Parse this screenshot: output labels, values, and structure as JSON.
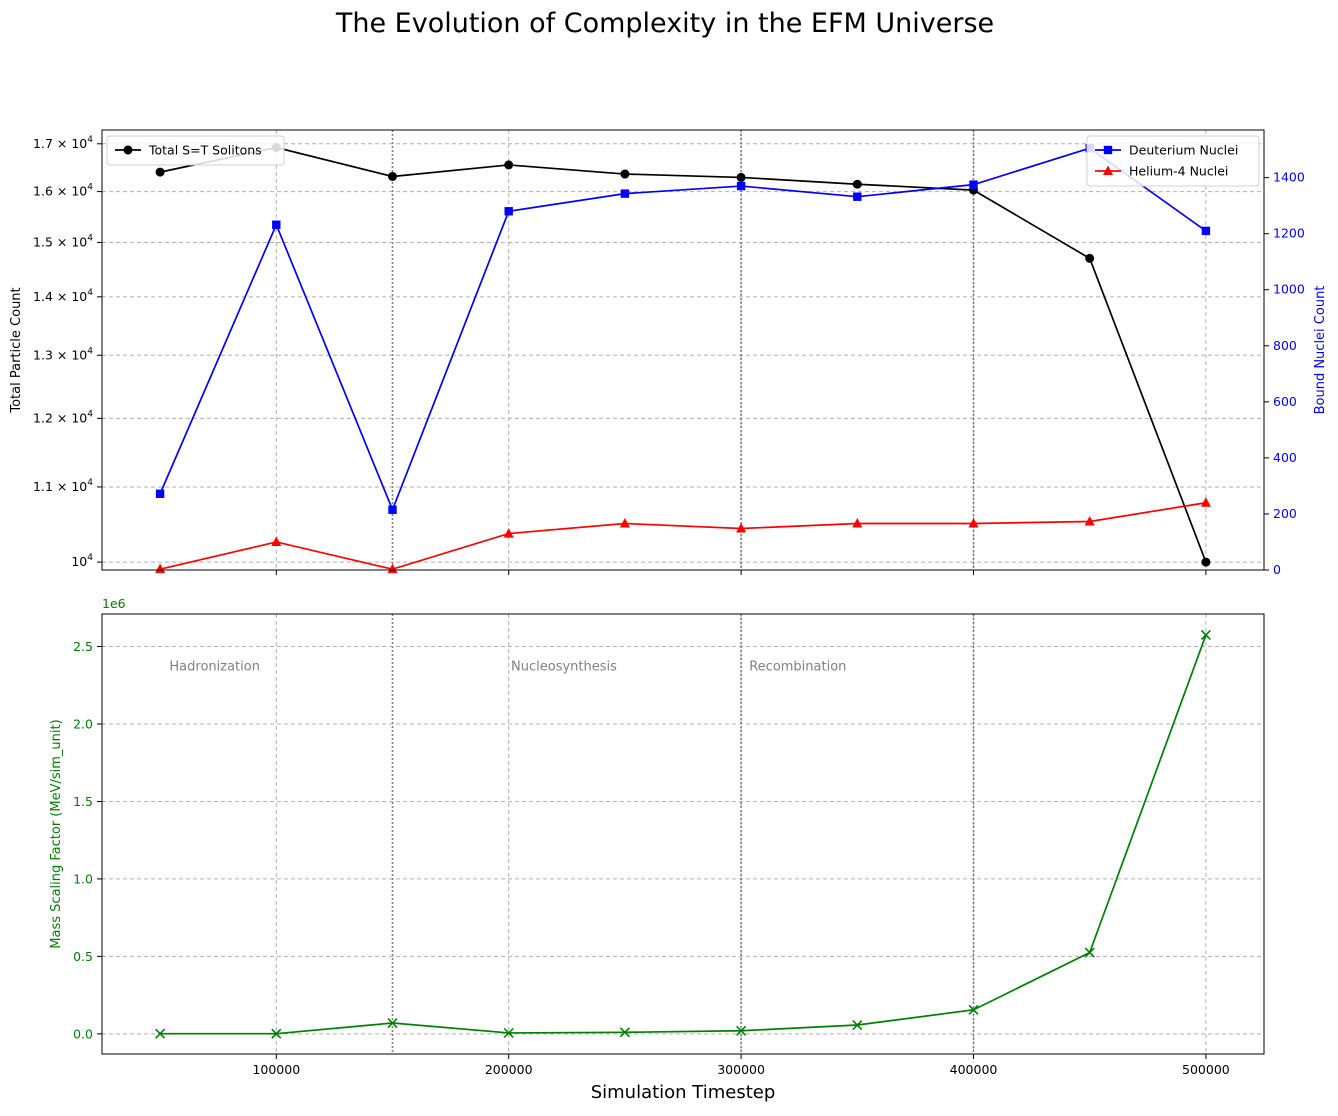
{
  "title": "The Evolution of Complexity in the EFM Universe",
  "colors": {
    "solitons": "#000000",
    "deuterium": "#0000ff",
    "helium": "#ff0000",
    "mass": "#008000",
    "grid": "#b0b0b0",
    "marker_lines": "#808080",
    "era_text": "#808080"
  },
  "chart_data": [
    {
      "type": "line",
      "panel": "top",
      "x": [
        50000,
        100000,
        150000,
        200000,
        250000,
        300000,
        350000,
        400000,
        450000,
        500000
      ],
      "xlim": [
        25000,
        525000
      ],
      "x_ticks": [
        100000,
        200000,
        300000,
        400000,
        500000
      ],
      "left_axis": {
        "label": "Total Particle Count",
        "scale": "log",
        "ylim": [
          9900,
          17300
        ],
        "ticks": [
          {
            "value": 10000,
            "mantissa": "10",
            "exponent": "4"
          },
          {
            "value": 11000,
            "mantissa": "1.1 × 10",
            "exponent": "4"
          },
          {
            "value": 12000,
            "mantissa": "1.2 × 10",
            "exponent": "4"
          },
          {
            "value": 13000,
            "mantissa": "1.3 × 10",
            "exponent": "4"
          },
          {
            "value": 14000,
            "mantissa": "1.4 × 10",
            "exponent": "4"
          },
          {
            "value": 15000,
            "mantissa": "1.5 × 10",
            "exponent": "4"
          },
          {
            "value": 16000,
            "mantissa": "1.6 × 10",
            "exponent": "4"
          },
          {
            "value": 17000,
            "mantissa": "1.7 × 10",
            "exponent": "4"
          }
        ]
      },
      "right_axis": {
        "label": "Bound Nuclei Count",
        "ylim": [
          0,
          1570
        ],
        "ticks": [
          0,
          200,
          400,
          600,
          800,
          1000,
          1200,
          1400
        ]
      },
      "series": [
        {
          "name": "Total S=T Solitons",
          "axis": "left",
          "marker": "circle",
          "color_key": "solitons",
          "values": [
            16400,
            16920,
            16310,
            16550,
            16360,
            16290,
            16150,
            16030,
            14700,
            10000
          ]
        },
        {
          "name": "Deuterium Nuclei",
          "axis": "right",
          "marker": "square",
          "color_key": "deuterium",
          "values": [
            272,
            1232,
            215,
            1280,
            1343,
            1370,
            1332,
            1375,
            1505,
            1210
          ]
        },
        {
          "name": "Helium-4 Nuclei",
          "axis": "right",
          "marker": "triangle",
          "color_key": "helium",
          "values": [
            3,
            100,
            3,
            130,
            166,
            148,
            166,
            166,
            173,
            240
          ]
        }
      ],
      "legend_left": "top-left",
      "legend_right": "top-right",
      "grid": true,
      "vlines": [
        150000,
        300000,
        400000
      ]
    },
    {
      "type": "line",
      "panel": "bottom",
      "x": [
        50000,
        100000,
        150000,
        200000,
        250000,
        300000,
        350000,
        400000,
        450000,
        500000
      ],
      "xlim": [
        25000,
        525000
      ],
      "xlabel": "Simulation Timestep",
      "x_ticks": [
        100000,
        200000,
        300000,
        400000,
        500000
      ],
      "x_tick_labels": [
        "100000",
        "200000",
        "300000",
        "400000",
        "500000"
      ],
      "ylabel": "Mass Scaling Factor (MeV/sim_unit)",
      "offset_label": "1e6",
      "ylim": [
        -130000,
        2710000
      ],
      "y_ticks": [
        0,
        500000,
        1000000,
        1500000,
        2000000,
        2500000
      ],
      "y_tick_labels": [
        "0.0",
        "0.5",
        "1.0",
        "1.5",
        "2.0",
        "2.5"
      ],
      "series": [
        {
          "name": "Mass Scaling Factor",
          "marker": "x",
          "color_key": "mass",
          "values": [
            1000,
            1000,
            70000,
            6000,
            10000,
            20000,
            57000,
            155000,
            525000,
            2575000
          ]
        }
      ],
      "grid": true,
      "vlines": [
        150000,
        300000,
        400000
      ],
      "annotations": [
        {
          "text": "Hadronization",
          "x": 54000,
          "y": 2370000
        },
        {
          "text": "Nucleosynthesis",
          "x": 201000,
          "y": 2370000
        },
        {
          "text": "Recombination",
          "x": 303500,
          "y": 2370000
        }
      ]
    }
  ]
}
